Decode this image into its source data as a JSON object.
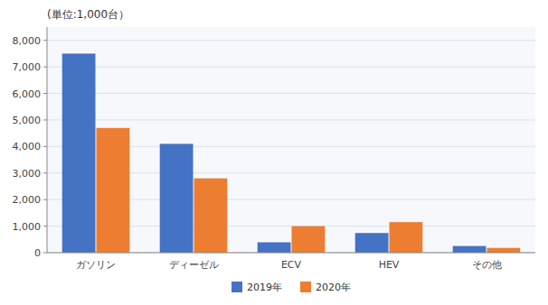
{
  "chart_data": {
    "type": "bar",
    "ylabel": "(単位:1,000台）",
    "categories": [
      "ガソリン",
      "ディーゼル",
      "ECV",
      "HEV",
      "その他"
    ],
    "series": [
      {
        "name": "2019年",
        "color": "#4472C4",
        "values": [
          7500,
          4100,
          390,
          740,
          250
        ]
      },
      {
        "name": "2020年",
        "color": "#ED7D31",
        "values": [
          4700,
          2800,
          1000,
          1150,
          180
        ]
      }
    ],
    "ylim": [
      0,
      8500
    ],
    "yticks": [
      0,
      {
        "value": 1000,
        "label": "1,000"
      },
      {
        "value": 2000,
        "label": "2,000"
      },
      {
        "value": 3000,
        "label": "3,000"
      },
      {
        "value": 4000,
        "label": "4,000"
      },
      {
        "value": 5000,
        "label": "5,000"
      },
      {
        "value": 6000,
        "label": "6,000"
      },
      {
        "value": 7000,
        "label": "7,000"
      },
      {
        "value": 8000,
        "label": "8,000"
      }
    ],
    "grid": true,
    "legend": "bottom"
  }
}
